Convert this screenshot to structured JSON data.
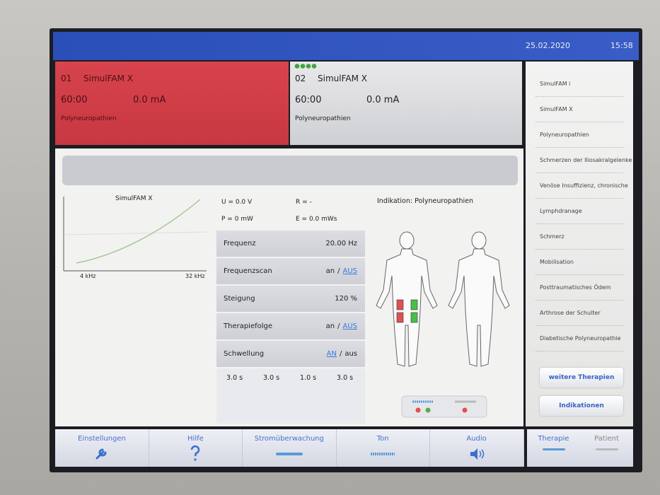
{
  "status_bar": {
    "date": "25.02.2020",
    "time": "15:58"
  },
  "channels": [
    {
      "number": "01",
      "program": "SimulFAM X",
      "time": "60:00",
      "current": "0.0 mA",
      "indication": "Polyneuropathien"
    },
    {
      "number": "02",
      "program": "SimulFAM X",
      "time": "60:00",
      "current": "0.0 mA",
      "indication": "Polyneuropathien"
    }
  ],
  "curve": {
    "title": "SimulFAM X",
    "x_min_label": "4 kHz",
    "x_max_label": "32 kHz"
  },
  "readings": [
    "U = 0.0 V",
    "R = -",
    "P = 0 mW",
    "E = 0.0 mWs"
  ],
  "parameters": {
    "separator": "/",
    "rows": [
      {
        "label": "Frequenz",
        "value": "20.00 Hz"
      },
      {
        "label": "Frequenzscan",
        "options": [
          "an",
          "AUS"
        ],
        "active": 1
      },
      {
        "label": "Steigung",
        "value": "120 %"
      },
      {
        "label": "Therapiefolge",
        "options": [
          "an",
          "AUS"
        ],
        "active": 1
      },
      {
        "label": "Schwellung",
        "options": [
          "AN",
          "aus"
        ],
        "active": 0
      }
    ],
    "timings": [
      "3.0 s",
      "3.0 s",
      "1.0 s",
      "3.0 s"
    ]
  },
  "indication": "Indikation: Polyneuropathien",
  "sidebar": {
    "items": [
      "SimulFAM i",
      "SimulFAM X",
      "Polyneuropathien",
      "Schmerzen der Iliosakralgelenke",
      "Venöse Insuffizienz, chronische",
      "Lymphdranage",
      "Schmerz",
      "Mobilisation",
      "Posttraumatisches Ödem",
      "Arthrose der Schulter",
      "Diabetische Polyneuropathie"
    ],
    "buttons": [
      "weitere Therapien",
      "Indikationen"
    ]
  },
  "toolbar": [
    "Einstellungen",
    "Hilfe",
    "Stromüberwachung",
    "Ton",
    "Audio"
  ],
  "mode_tabs": [
    "Therapie",
    "Patient"
  ]
}
